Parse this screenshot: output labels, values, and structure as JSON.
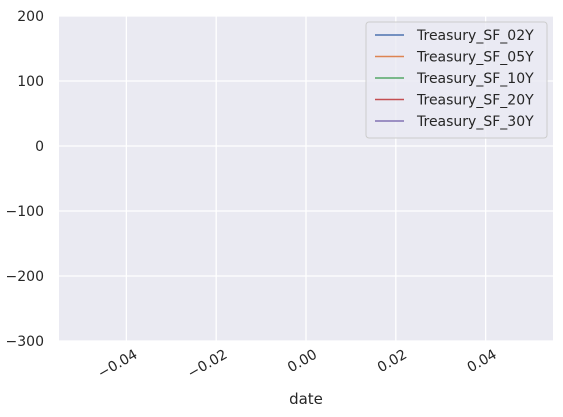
{
  "chart_data": {
    "type": "line",
    "title": "",
    "xlabel": "date",
    "ylabel": "",
    "xlim": [
      -0.055,
      0.055
    ],
    "ylim": [
      -300,
      200
    ],
    "x_ticks": [
      -0.04,
      -0.02,
      0.0,
      0.02,
      0.04
    ],
    "x_tick_labels": [
      "−0.04",
      "−0.02",
      "0.00",
      "0.02",
      "0.04"
    ],
    "y_ticks": [
      200,
      100,
      0,
      -100,
      -200,
      -300
    ],
    "y_tick_labels": [
      "200",
      "100",
      "0",
      "−100",
      "−200",
      "−300"
    ],
    "grid": true,
    "legend_position": "top-right",
    "series": [
      {
        "name": "Treasury_SF_02Y",
        "color": "#4c72b0",
        "values": []
      },
      {
        "name": "Treasury_SF_05Y",
        "color": "#dd8452",
        "values": []
      },
      {
        "name": "Treasury_SF_10Y",
        "color": "#55a868",
        "values": []
      },
      {
        "name": "Treasury_SF_20Y",
        "color": "#c44e52",
        "values": []
      },
      {
        "name": "Treasury_SF_30Y",
        "color": "#8172b3",
        "values": []
      }
    ]
  }
}
